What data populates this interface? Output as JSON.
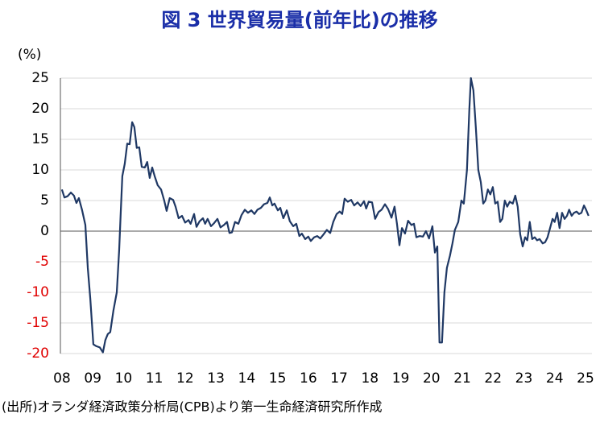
{
  "chart_data": {
    "type": "line",
    "title": "図 3  世界貿易量(前年比)の推移",
    "y_label": "(%)",
    "source": "(出所)オランダ経済政策分析局(CPB)より第一生命経済研究所作成",
    "ylim": [
      -20,
      25
    ],
    "yticks": [
      25,
      20,
      15,
      10,
      5,
      0,
      -5,
      -10,
      -15,
      -20
    ],
    "negative_tick_color": "#e00000",
    "xlim": [
      7.95,
      25.21
    ],
    "xticks": [
      {
        "value": 8,
        "label": "08"
      },
      {
        "value": 9,
        "label": "09"
      },
      10,
      11,
      12,
      13,
      14,
      15,
      16,
      17,
      18,
      19,
      20,
      21,
      22,
      23,
      24,
      25
    ],
    "grid": true,
    "series": [
      {
        "name": "世界貿易量",
        "color": "#1f3864",
        "x": [
          8.0,
          8.08,
          8.18,
          8.29,
          8.39,
          8.47,
          8.55,
          8.65,
          8.76,
          8.84,
          8.92,
          9.02,
          9.12,
          9.23,
          9.33,
          9.41,
          9.49,
          9.57,
          9.67,
          9.78,
          9.86,
          9.91,
          9.96,
          10.04,
          10.12,
          10.2,
          10.28,
          10.35,
          10.43,
          10.51,
          10.59,
          10.69,
          10.77,
          10.85,
          10.93,
          11.01,
          11.11,
          11.22,
          11.32,
          11.4,
          11.5,
          11.61,
          11.69,
          11.79,
          11.9,
          12.0,
          12.11,
          12.18,
          12.29,
          12.37,
          12.47,
          12.58,
          12.65,
          12.73,
          12.84,
          12.94,
          13.05,
          13.15,
          13.26,
          13.36,
          13.44,
          13.52,
          13.62,
          13.73,
          13.83,
          13.94,
          14.04,
          14.15,
          14.25,
          14.35,
          14.46,
          14.56,
          14.67,
          14.75,
          14.83,
          14.9,
          15.01,
          15.09,
          15.19,
          15.3,
          15.4,
          15.51,
          15.61,
          15.71,
          15.79,
          15.9,
          16.0,
          16.08,
          16.19,
          16.29,
          16.39,
          16.5,
          16.6,
          16.71,
          16.81,
          16.92,
          17.02,
          17.1,
          17.18,
          17.28,
          17.39,
          17.49,
          17.6,
          17.7,
          17.81,
          17.88,
          17.96,
          18.07,
          18.17,
          18.28,
          18.38,
          18.49,
          18.59,
          18.7,
          18.8,
          18.88,
          18.96,
          19.04,
          19.14,
          19.24,
          19.35,
          19.43,
          19.51,
          19.61,
          19.72,
          19.82,
          19.92,
          20.03,
          20.11,
          20.19,
          20.26,
          20.34,
          20.42,
          20.5,
          20.6,
          20.68,
          20.76,
          20.87,
          20.97,
          21.05,
          21.15,
          21.23,
          21.28,
          21.36,
          21.44,
          21.52,
          21.6,
          21.68,
          21.75,
          21.83,
          21.91,
          21.99,
          22.07,
          22.15,
          22.23,
          22.3,
          22.38,
          22.46,
          22.54,
          22.64,
          22.72,
          22.8,
          22.88,
          22.96,
          23.04,
          23.11,
          23.19,
          23.27,
          23.35,
          23.43,
          23.51,
          23.61,
          23.69,
          23.77,
          23.85,
          23.93,
          24.0,
          24.08,
          24.16,
          24.24,
          24.32,
          24.4,
          24.47,
          24.55,
          24.63,
          24.71,
          24.79,
          24.87,
          24.95,
          25.02,
          25.1
        ],
        "values": [
          6.8,
          5.5,
          5.7,
          6.3,
          5.8,
          4.6,
          5.4,
          3.5,
          1.0,
          -6.0,
          -11.0,
          -18.5,
          -18.8,
          -19.0,
          -19.8,
          -17.8,
          -16.8,
          -16.5,
          -13.0,
          -10.0,
          -3.0,
          3.0,
          9.0,
          11.0,
          14.3,
          14.2,
          17.8,
          17.0,
          13.6,
          13.7,
          10.5,
          10.4,
          11.3,
          8.7,
          10.4,
          9.0,
          7.5,
          6.8,
          5.0,
          3.3,
          5.4,
          5.1,
          4.0,
          2.1,
          2.5,
          1.4,
          1.8,
          1.2,
          2.8,
          0.7,
          1.6,
          2.1,
          1.2,
          2.0,
          0.8,
          1.3,
          2.0,
          0.6,
          1.0,
          1.5,
          -0.3,
          -0.2,
          1.5,
          1.2,
          2.6,
          3.5,
          3.0,
          3.4,
          2.8,
          3.5,
          3.8,
          4.4,
          4.6,
          5.5,
          4.2,
          4.5,
          3.4,
          3.8,
          2.1,
          3.4,
          1.6,
          0.8,
          1.2,
          -0.8,
          -0.4,
          -1.3,
          -0.9,
          -1.6,
          -1.0,
          -0.8,
          -1.2,
          -0.5,
          0.2,
          -0.3,
          1.5,
          2.8,
          3.2,
          2.8,
          5.3,
          4.8,
          5.1,
          4.2,
          4.7,
          4.1,
          4.9,
          3.7,
          4.8,
          4.7,
          2.0,
          3.1,
          3.5,
          4.4,
          3.6,
          2.2,
          4.0,
          1.2,
          -2.3,
          0.5,
          -0.4,
          1.7,
          1.0,
          1.2,
          -1.0,
          -0.8,
          -0.9,
          0.0,
          -1.2,
          0.8,
          -3.5,
          -2.5,
          -18.2,
          -18.2,
          -10.0,
          -6.0,
          -4.0,
          -2.0,
          0.2,
          1.5,
          5.0,
          4.5,
          10.0,
          20.0,
          25.0,
          23.0,
          17.0,
          10.0,
          8.0,
          4.5,
          5.0,
          6.8,
          6.0,
          7.2,
          4.5,
          4.8,
          1.5,
          2.0,
          5.0,
          4.0,
          4.8,
          4.5,
          5.8,
          4.0,
          -0.5,
          -2.5,
          -1.0,
          -1.5,
          1.5,
          -1.3,
          -1.0,
          -1.5,
          -1.3,
          -2.0,
          -1.8,
          -1.0,
          0.5,
          2.0,
          1.5,
          3.0,
          0.5,
          3.0,
          2.0,
          2.5,
          3.5,
          2.5,
          3.0,
          3.2,
          2.8,
          3.0,
          4.2,
          3.5,
          2.5
        ]
      }
    ]
  }
}
